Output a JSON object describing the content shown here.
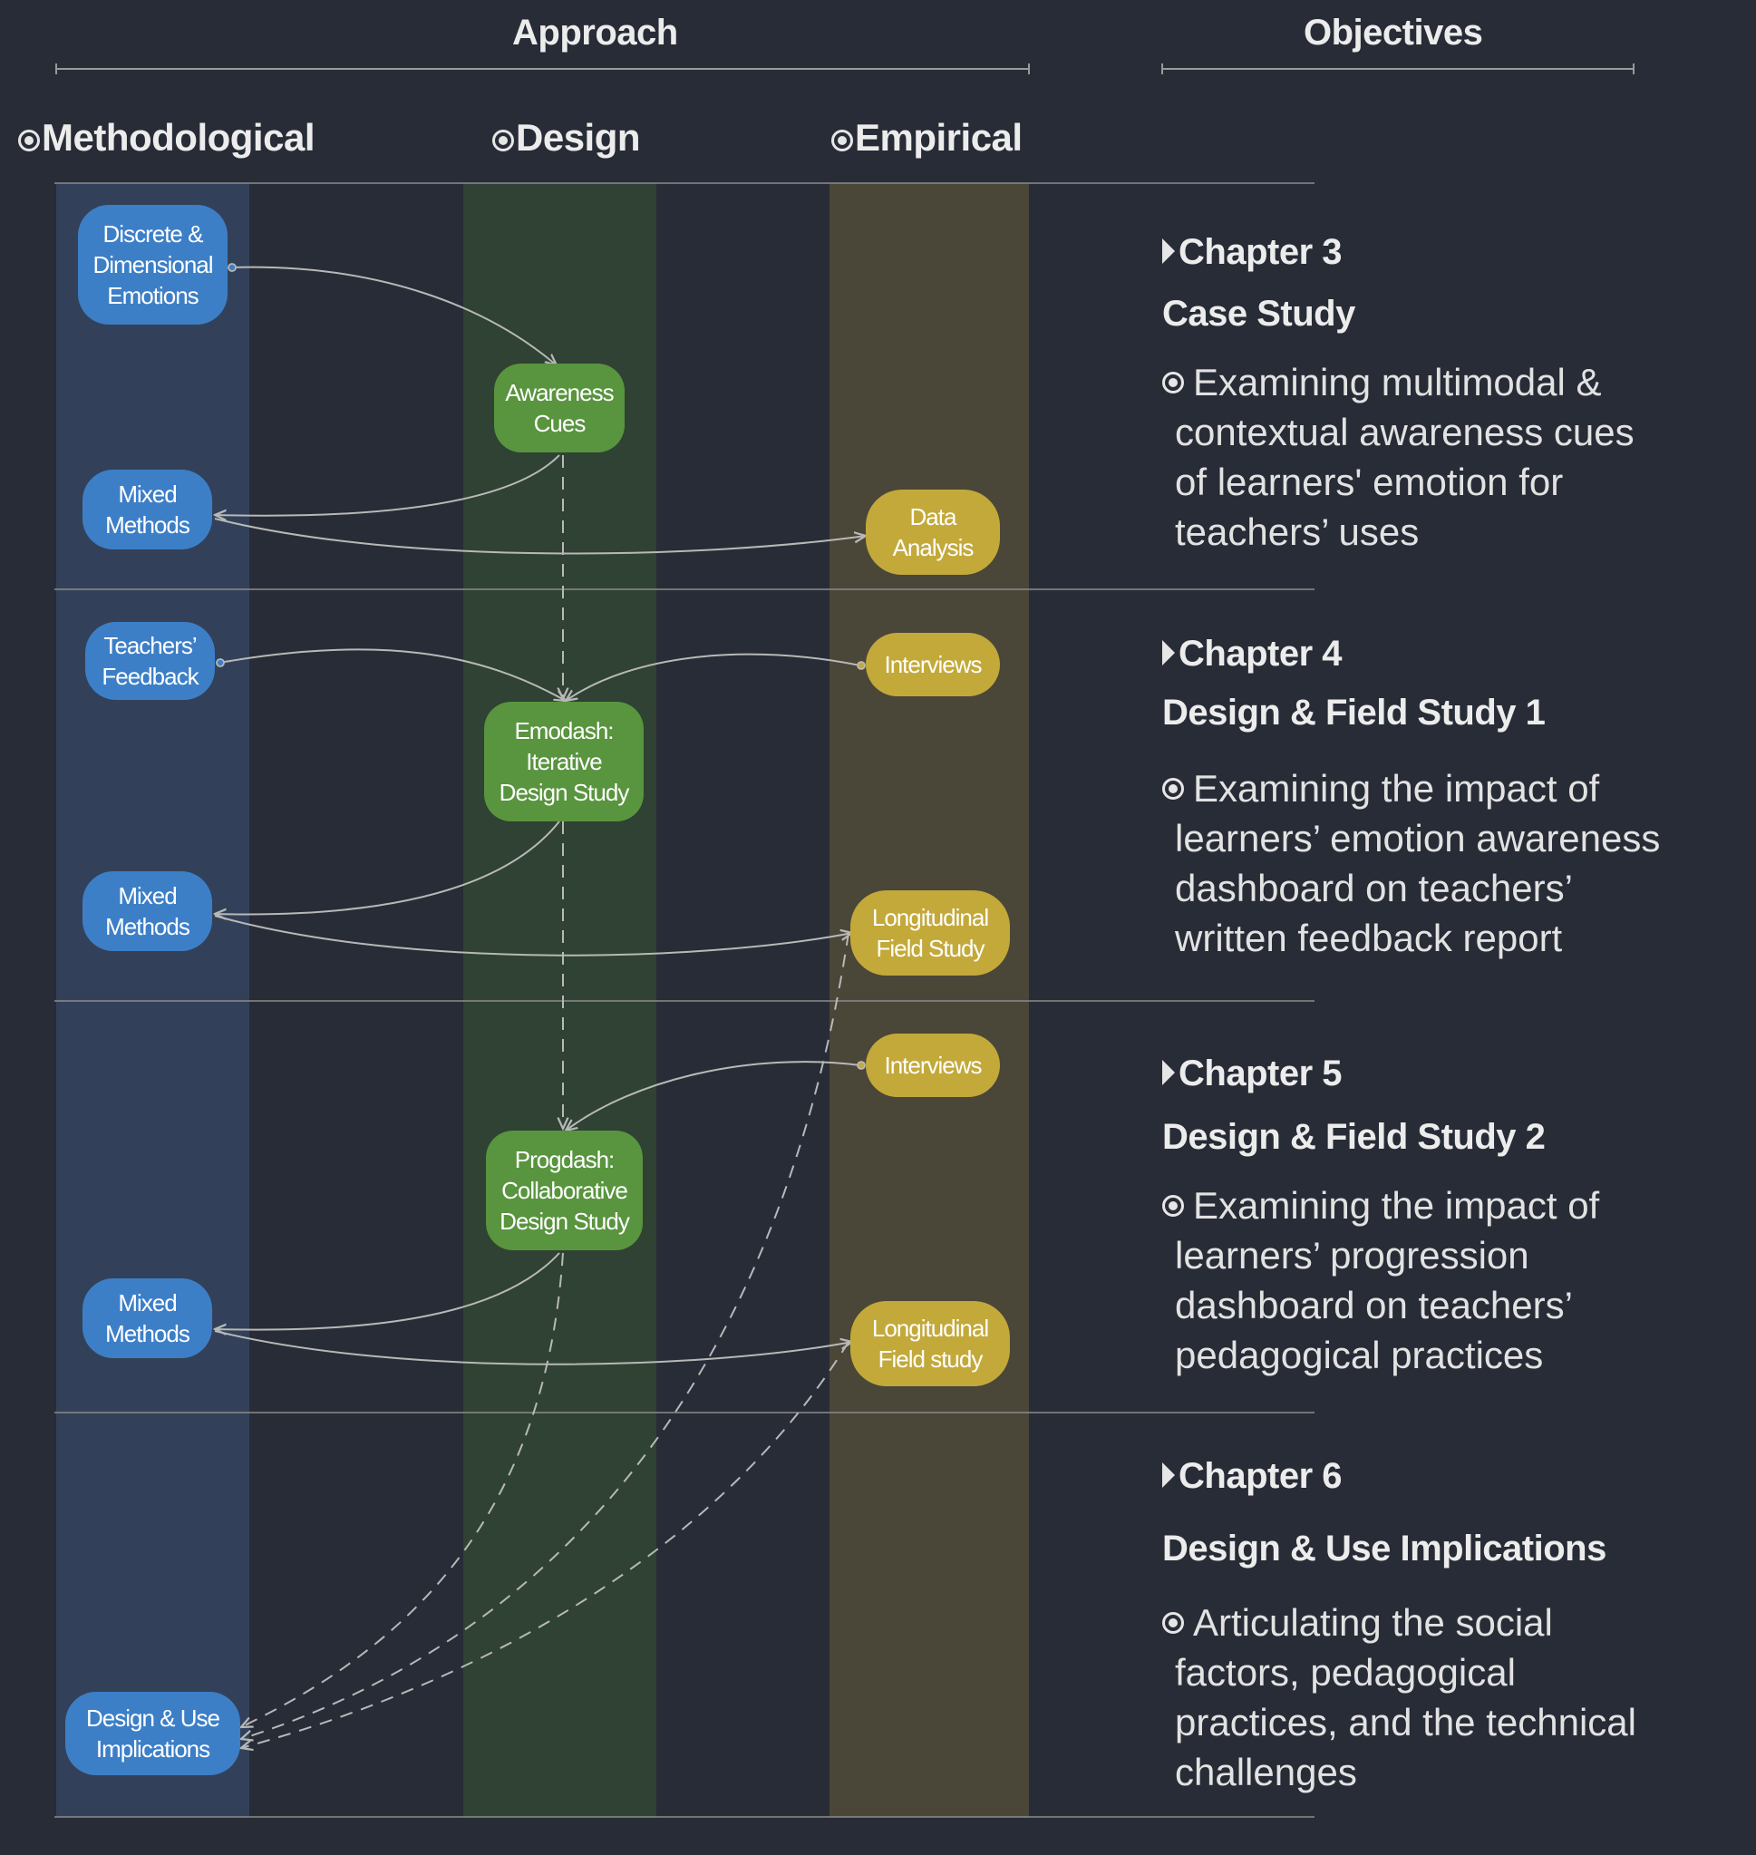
{
  "headers": {
    "approach": "Approach",
    "objectives": "Objectives",
    "columns": {
      "methodological": "Methodological",
      "design": "Design",
      "empirical": "Empirical"
    }
  },
  "colors": {
    "background": "#282c36",
    "methodological_band": "#324159",
    "design_band": "#2f4233",
    "empirical_band": "#4a4638",
    "methodological_node": "#3d7fc7",
    "design_node": "#59943f",
    "empirical_node": "#c3a93a",
    "connector": "#b8b8b8"
  },
  "nodes": {
    "discrete_emotions": "Discrete &\nDimensional\nEmotions",
    "awareness_cues": "Awareness\nCues",
    "mixed_methods_1": "Mixed\nMethods",
    "data_analysis": "Data\nAnalysis",
    "teachers_feedback": "Teachers’\nFeedback",
    "interviews_1": "Interviews",
    "emodash": "Emodash:\nIterative\nDesign Study",
    "mixed_methods_2": "Mixed\nMethods",
    "longitudinal_1": "Longitudinal\nField Study",
    "interviews_2": "Interviews",
    "progdash": "Progdash:\nCollaborative\nDesign Study",
    "mixed_methods_3": "Mixed\nMethods",
    "longitudinal_2": "Longitudinal\nField study",
    "design_use": "Design  & Use\nImplications"
  },
  "chapters": [
    {
      "heading": "Chapter 3",
      "subtitle": "Case Study",
      "lines": [
        "Examining multimodal &",
        "contextual awareness cues",
        "of learners' emotion for",
        "teachers’ uses"
      ]
    },
    {
      "heading": "Chapter 4",
      "subtitle": "Design & Field Study 1",
      "lines": [
        "Examining the impact of",
        "learners’ emotion awareness",
        "dashboard on teachers’",
        "written feedback report"
      ]
    },
    {
      "heading": "Chapter 5",
      "subtitle": "Design & Field Study 2",
      "lines": [
        "Examining the impact of",
        "learners’ progression",
        "dashboard on teachers’",
        "pedagogical practices"
      ]
    },
    {
      "heading": "Chapter 6",
      "subtitle": "Design & Use Implications",
      "lines": [
        "Articulating the social",
        "factors, pedagogical",
        "practices, and the technical",
        "challenges"
      ]
    }
  ]
}
